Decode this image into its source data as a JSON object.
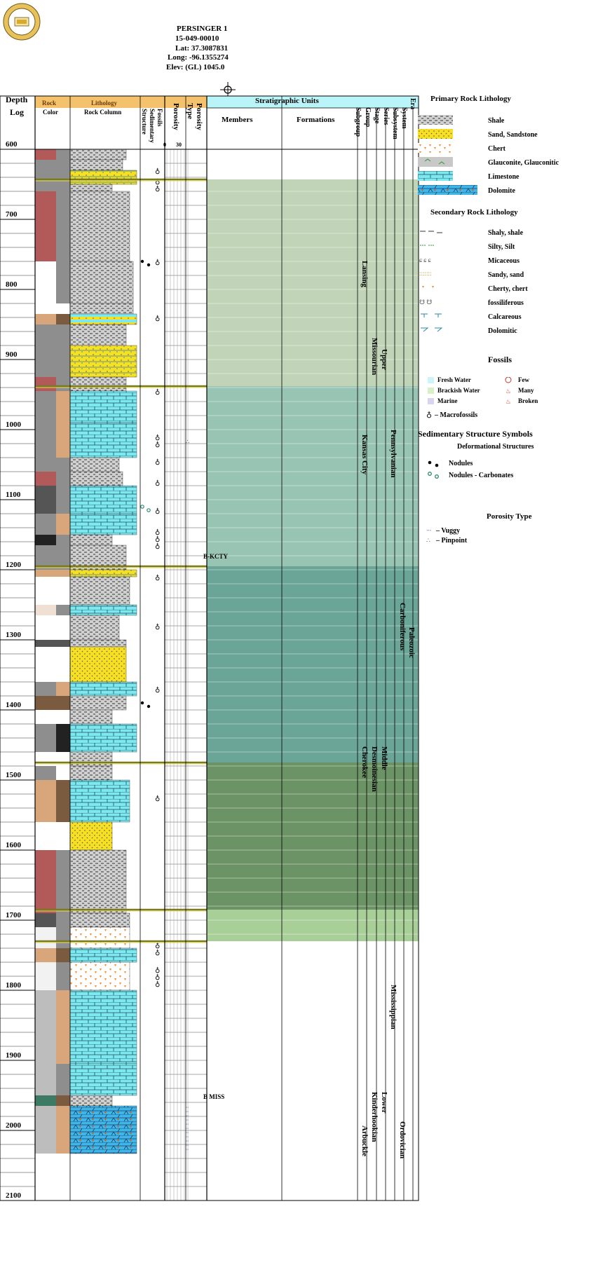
{
  "well": {
    "name": "PERSINGER 1",
    "api": "15-049-00010",
    "lat": "Lat: 37.3087831",
    "long": "Long: -96.1355274",
    "elev": "Elev: (GL) 1045.0"
  },
  "columns": {
    "depth": "Depth",
    "log": "Log",
    "rock": "Rock",
    "color": "Color",
    "lithology": "Lithology",
    "rock_column": "Rock Column",
    "fossils": "Fossils",
    "sedimentary": "Sedimentary",
    "structure": "Structure",
    "porosity": "Porosity",
    "porosity_scale_min": "0",
    "porosity_scale_max": "30",
    "porosity_type_1": "Porosity",
    "porosity_type_2": "Type",
    "strat_units": "Stratigraphic Units",
    "members": "Members",
    "formations": "Formations",
    "subgroup": "Subgroup",
    "group": "Group",
    "stage": "Stage",
    "series": "Series",
    "subsystem": "Subsystem",
    "system": "System",
    "era": "Era"
  },
  "depth_labels": [
    "600",
    "700",
    "800",
    "900",
    "1000",
    "1100",
    "1200",
    "1300",
    "1400",
    "1500",
    "1600",
    "1700",
    "1800",
    "1900",
    "2000",
    "2100"
  ],
  "strat": {
    "tops": [
      "B-KCTY",
      "B MISS"
    ],
    "subgroups": [
      "Lansing",
      "Kansas City",
      "Cherokee",
      "Arbuckle"
    ],
    "stages": [
      "Missourian",
      "Desmoinesian",
      "Kinderhookian"
    ],
    "series": [
      "Upper",
      "Middle",
      "Lower"
    ],
    "systems": [
      "Pennsylvanian",
      "Mississippian",
      "Ordovician"
    ],
    "subsystem": "Carboniferous",
    "era": "Paleozoic"
  },
  "legend": {
    "primary_title": "Primary Rock Lithology",
    "primary": [
      "Shale",
      "Sand, Sandstone",
      "Chert",
      "Glauconite, Glauconitic",
      "Limestone",
      "Dolomite"
    ],
    "secondary_title": "Secondary Rock Lithology",
    "secondary": [
      "Shaly, shale",
      "Silty, Silt",
      "Micaceous",
      "Sandy, sand",
      "Cherty, chert",
      "fossiliferous",
      "Calcareous",
      "Dolomitic"
    ],
    "fossils_title": "Fossils",
    "fossils_env": [
      "Fresh Water",
      "Brackish Water",
      "Marine"
    ],
    "fossils_count": [
      "Few",
      "Many",
      "Broken"
    ],
    "macrofossils": "– Macrofossils",
    "sed_title": "Sedimentary Structure Symbols",
    "deform_title": "Deformational Structures",
    "nodules": "Nodules",
    "nodules_carb": "Nodules - Carbonates",
    "porosity_title": "Porosity Type",
    "vuggy": "– Vuggy",
    "pinpoint": "– Pinpoint"
  },
  "colors": {
    "header_orange": "#f4c26c",
    "header_cyan": "#b8f4f8",
    "zone_green_light": "#c1d4b7",
    "zone_teal": "#98c4b4",
    "zone_teal_dark": "#6aa598",
    "zone_olive": "#6c9365",
    "zone_green_bottom": "#a9cf98",
    "limestone": "#7de9ee",
    "sand": "#f7df22",
    "rock_red": "#b25959",
    "rock_gray": "#8e8e8e",
    "rock_tan": "#d8a67a"
  },
  "intervals": [
    {
      "top": 600,
      "base": 615,
      "color": "#b25959",
      "color2": "#8e8e8e",
      "lith": "shale",
      "w": 0.8
    },
    {
      "top": 615,
      "base": 630,
      "color": "#8e8e8e",
      "color2": "#8e8e8e",
      "lith": "shale",
      "w": 0.75
    },
    {
      "top": 630,
      "base": 650,
      "color": "#8e8e8e",
      "color2": "#8e8e8e",
      "lith": "sandlime",
      "w": 0.95
    },
    {
      "top": 650,
      "base": 660,
      "color": "#8e8e8e",
      "color2": "#8e8e8e",
      "lith": "shale",
      "w": 0.6
    },
    {
      "top": 660,
      "base": 760,
      "color": "#b25959",
      "color2": "#8e8e8e",
      "lith": "shale",
      "w": 0.85
    },
    {
      "top": 760,
      "base": 820,
      "color": "#ffffff",
      "color2": "#8e8e8e",
      "lith": "shale",
      "w": 0.9
    },
    {
      "top": 820,
      "base": 835,
      "color": "#ffffff",
      "color2": "#ffffff",
      "lith": "shale",
      "w": 0.9
    },
    {
      "top": 835,
      "base": 850,
      "color": "#d8a67a",
      "color2": "#7a5b40",
      "lith": "limesand",
      "w": 0.95
    },
    {
      "top": 850,
      "base": 880,
      "color": "#8e8e8e",
      "color2": "#8e8e8e",
      "lith": "shale",
      "w": 0.8
    },
    {
      "top": 880,
      "base": 925,
      "color": "#8e8e8e",
      "color2": "#8e8e8e",
      "lith": "sandlime",
      "w": 0.95
    },
    {
      "top": 925,
      "base": 945,
      "color": "#b25959",
      "color2": "#8e8e8e",
      "lith": "shale",
      "w": 0.8
    },
    {
      "top": 945,
      "base": 990,
      "color": "#8e8e8e",
      "color2": "#d8a67a",
      "lith": "limestone",
      "w": 0.95
    },
    {
      "top": 990,
      "base": 1040,
      "color": "#8e8e8e",
      "color2": "#d8a67a",
      "lith": "limestone",
      "w": 0.95
    },
    {
      "top": 1040,
      "base": 1060,
      "color": "#8e8e8e",
      "color2": "#8e8e8e",
      "lith": "shale",
      "w": 0.7
    },
    {
      "top": 1060,
      "base": 1080,
      "color": "#b25959",
      "color2": "#8e8e8e",
      "lith": "shale",
      "w": 0.75
    },
    {
      "top": 1080,
      "base": 1120,
      "color": "#555555",
      "color2": "#8e8e8e",
      "lith": "limestone",
      "w": 0.95
    },
    {
      "top": 1120,
      "base": 1150,
      "color": "#8e8e8e",
      "color2": "#d8a67a",
      "lith": "limestone",
      "w": 0.95
    },
    {
      "top": 1150,
      "base": 1165,
      "color": "#222222",
      "color2": "#8e8e8e",
      "lith": "shale",
      "w": 0.6
    },
    {
      "top": 1165,
      "base": 1200,
      "color": "#8e8e8e",
      "color2": "#8e8e8e",
      "lith": "shale",
      "w": 0.8
    },
    {
      "top": 1200,
      "base": 1210,
      "color": "#d8a67a",
      "color2": "#d8a67a",
      "lith": "sandlime",
      "w": 0.95
    },
    {
      "top": 1210,
      "base": 1250,
      "color": "#ffffff",
      "color2": "#ffffff",
      "lith": "shale",
      "w": 0.85
    },
    {
      "top": 1250,
      "base": 1265,
      "color": "#f0dfd3",
      "color2": "#8e8e8e",
      "lith": "limestone",
      "w": 0.95
    },
    {
      "top": 1265,
      "base": 1300,
      "color": "#ffffff",
      "color2": "#ffffff",
      "lith": "shale",
      "w": 0.7
    },
    {
      "top": 1300,
      "base": 1310,
      "color": "#555555",
      "color2": "#555555",
      "lith": "shale",
      "w": 0.8
    },
    {
      "top": 1310,
      "base": 1360,
      "color": "#ffffff",
      "color2": "#ffffff",
      "lith": "sand",
      "w": 0.8
    },
    {
      "top": 1360,
      "base": 1380,
      "color": "#8e8e8e",
      "color2": "#d8a67a",
      "lith": "limestone",
      "w": 0.95
    },
    {
      "top": 1380,
      "base": 1400,
      "color": "#7a5b40",
      "color2": "#7a5b40",
      "lith": "shale",
      "w": 0.8
    },
    {
      "top": 1400,
      "base": 1420,
      "color": "#ffffff",
      "color2": "#ffffff",
      "lith": "shale",
      "w": 0.6
    },
    {
      "top": 1420,
      "base": 1460,
      "color": "#8e8e8e",
      "color2": "#222222",
      "lith": "limestone",
      "w": 0.95
    },
    {
      "top": 1460,
      "base": 1480,
      "color": "#ffffff",
      "color2": "#ffffff",
      "lith": "shale",
      "w": 0.6
    },
    {
      "top": 1480,
      "base": 1500,
      "color": "#8e8e8e",
      "color2": "#ffffff",
      "lith": "shale",
      "w": 0.6
    },
    {
      "top": 1500,
      "base": 1560,
      "color": "#d8a67a",
      "color2": "#7a5b40",
      "lith": "limestone",
      "w": 0.85
    },
    {
      "top": 1560,
      "base": 1600,
      "color": "#ffffff",
      "color2": "#ffffff",
      "lith": "sand",
      "w": 0.6
    },
    {
      "top": 1600,
      "base": 1690,
      "color": "#b25959",
      "color2": "#8e8e8e",
      "lith": "shale",
      "w": 0.8
    },
    {
      "top": 1690,
      "base": 1710,
      "color": "#555555",
      "color2": "#8e8e8e",
      "lith": "shale",
      "w": 0.85
    },
    {
      "top": 1710,
      "base": 1740,
      "color": "#f2f2f2",
      "color2": "#8e8e8e",
      "lith": "chert",
      "w": 0.85
    },
    {
      "top": 1740,
      "base": 1760,
      "color": "#d8a67a",
      "color2": "#7a5b40",
      "lith": "limestone",
      "w": 0.95
    },
    {
      "top": 1760,
      "base": 1800,
      "color": "#f2f2f2",
      "color2": "#8e8e8e",
      "lith": "chert",
      "w": 0.85
    },
    {
      "top": 1800,
      "base": 1905,
      "color": "#bdbdbd",
      "color2": "#d8a67a",
      "lith": "limestone",
      "w": 0.95
    },
    {
      "top": 1905,
      "base": 1950,
      "color": "#bdbdbd",
      "color2": "#8e8e8e",
      "lith": "limestone",
      "w": 0.95
    },
    {
      "top": 1950,
      "base": 1965,
      "color": "#3d7a64",
      "color2": "#7a5b40",
      "lith": "shale",
      "w": 0.6
    },
    {
      "top": 1965,
      "base": 2033,
      "color": "#bdbdbd",
      "color2": "#d8a67a",
      "lith": "dolomite",
      "w": 0.95
    }
  ]
}
